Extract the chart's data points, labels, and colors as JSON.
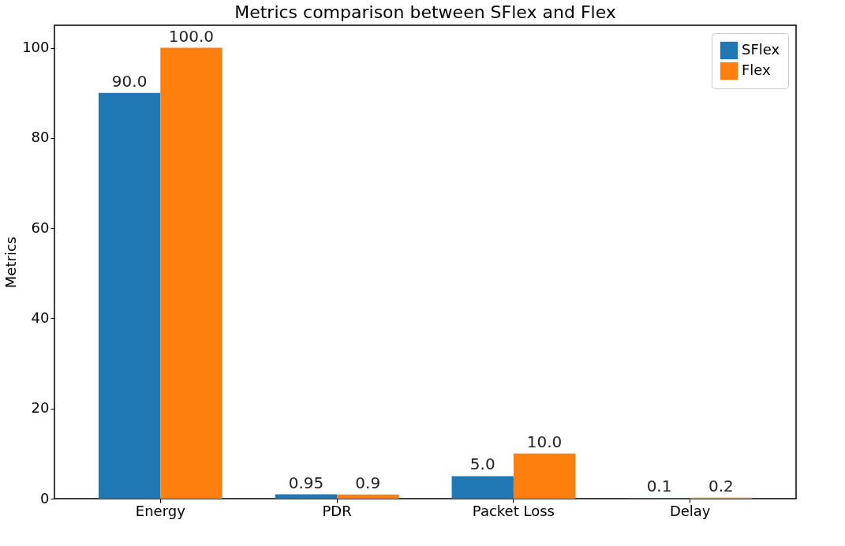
{
  "chart_data": {
    "type": "bar",
    "title": "Metrics comparison between SFlex and Flex",
    "ylabel": "Metrics",
    "categories": [
      "Energy",
      "PDR",
      "Packet Loss",
      "Delay"
    ],
    "series": [
      {
        "name": "SFlex",
        "color": "#1f77b4",
        "values": [
          90.0,
          0.95,
          5.0,
          0.1
        ],
        "value_labels": [
          "90.0",
          "0.95",
          "5.0",
          "0.1"
        ]
      },
      {
        "name": "Flex",
        "color": "#ff7f0e",
        "values": [
          100.0,
          0.9,
          10.0,
          0.2
        ],
        "value_labels": [
          "100.0",
          "0.9",
          "10.0",
          "0.2"
        ]
      }
    ],
    "ylim": [
      0,
      105
    ],
    "yticks": [
      0,
      20,
      40,
      60,
      80,
      100
    ],
    "grid": false,
    "legend": "top right"
  }
}
